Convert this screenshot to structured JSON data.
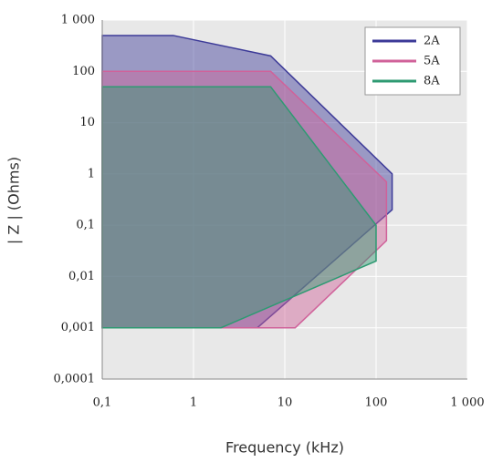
{
  "chart_data": {
    "type": "area",
    "xlabel": "Frequency (kHz)",
    "ylabel": "| Z | (Ohms)",
    "xscale": "log",
    "yscale": "log",
    "grid": true,
    "legend": "upper right",
    "xlim": [
      0.1,
      1000
    ],
    "ylim": [
      0.0001,
      1000
    ],
    "xticks": [
      {
        "value": 0.1,
        "label": "0,1"
      },
      1,
      10,
      100,
      {
        "value": 1000,
        "label": "1 000"
      }
    ],
    "yticks": [
      {
        "value": 0.0001,
        "label": "0,0001"
      },
      {
        "value": 0.001,
        "label": "0,001"
      },
      {
        "value": 0.01,
        "label": "0,01"
      },
      {
        "value": 0.1,
        "label": "0,1"
      },
      1,
      10,
      100,
      {
        "value": 1000,
        "label": "1 000"
      }
    ],
    "series": [
      {
        "name": "2A",
        "color": "#3c3a98",
        "x": [
          0.1,
          0.6,
          7,
          150,
          150,
          5,
          0.1
        ],
        "values": [
          500,
          500,
          200,
          1,
          0.2,
          0.001,
          0.001
        ]
      },
      {
        "name": "5A",
        "color": "#d0629a",
        "x": [
          0.1,
          7,
          130,
          130,
          13,
          0.1
        ],
        "values": [
          100,
          100,
          0.7,
          0.05,
          0.001,
          0.001
        ]
      },
      {
        "name": "8A",
        "color": "#2e9a72",
        "x": [
          0.1,
          7,
          100,
          100,
          2,
          0.1
        ],
        "values": [
          50,
          50,
          0.1,
          0.02,
          0.001,
          0.001
        ]
      }
    ]
  }
}
